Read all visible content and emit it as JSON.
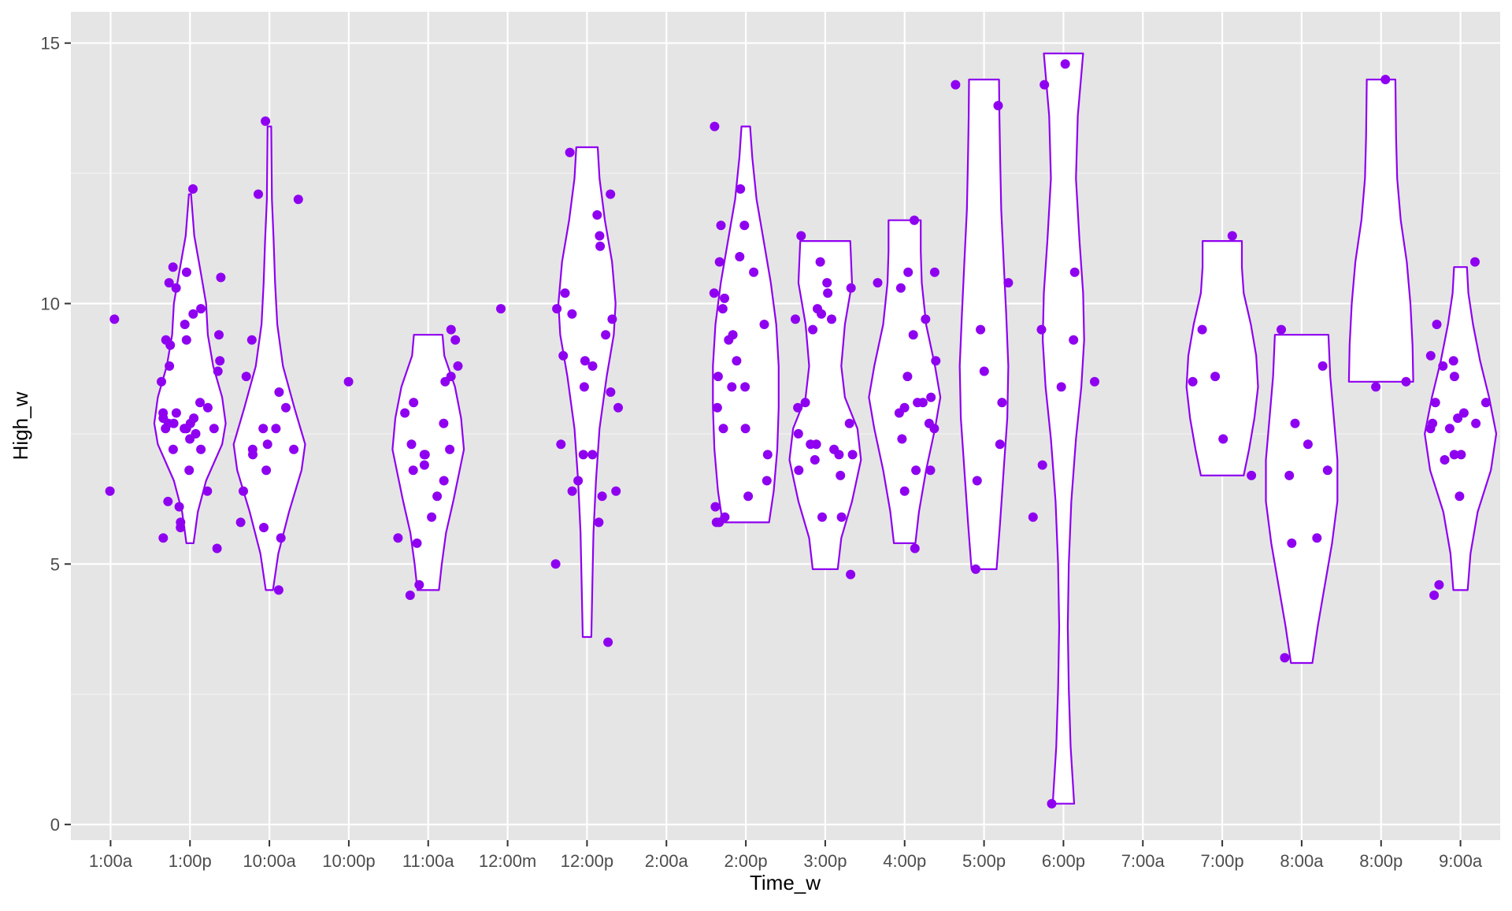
{
  "chart_data": {
    "type": "violin",
    "title": "",
    "xlabel": "Time_w",
    "ylabel": "High_w",
    "categories": [
      "1:00a",
      "1:00p",
      "10:00a",
      "10:00p",
      "11:00a",
      "12:00m",
      "12:00p",
      "2:00a",
      "2:00p",
      "3:00p",
      "4:00p",
      "5:00p",
      "6:00p",
      "7:00a",
      "7:00p",
      "8:00a",
      "8:00p",
      "9:00a"
    ],
    "y_ticks": [
      0,
      5,
      10,
      15
    ],
    "ylim": [
      -0.3,
      15.6
    ],
    "grid": true,
    "legend": "none",
    "colors": {
      "points": "#8F00F0",
      "violin_stroke": "#8F00F0",
      "violin_fill": "#FFFFFF",
      "panel_bg": "#E5E5E5",
      "grid": "#FFFFFF"
    },
    "violins": [
      {
        "category": "1:00p",
        "range": [
          5.4,
          12.1
        ],
        "profile": [
          [
            5.4,
            0.1
          ],
          [
            6.0,
            0.22
          ],
          [
            6.6,
            0.45
          ],
          [
            7.3,
            0.9
          ],
          [
            7.7,
            1.0
          ],
          [
            8.2,
            0.9
          ],
          [
            8.8,
            0.65
          ],
          [
            9.4,
            0.5
          ],
          [
            10.0,
            0.45
          ],
          [
            10.6,
            0.3
          ],
          [
            11.3,
            0.12
          ],
          [
            12.1,
            0.03
          ]
        ]
      },
      {
        "category": "10:00a",
        "range": [
          4.5,
          13.4
        ],
        "profile": [
          [
            4.5,
            0.1
          ],
          [
            5.2,
            0.25
          ],
          [
            6.0,
            0.55
          ],
          [
            6.8,
            0.9
          ],
          [
            7.3,
            1.0
          ],
          [
            8.0,
            0.7
          ],
          [
            8.8,
            0.38
          ],
          [
            9.6,
            0.22
          ],
          [
            10.4,
            0.16
          ],
          [
            11.2,
            0.12
          ],
          [
            12.0,
            0.07
          ],
          [
            13.4,
            0.05
          ]
        ]
      },
      {
        "category": "11:00a",
        "range": [
          4.5,
          9.4
        ],
        "profile": [
          [
            4.5,
            0.3
          ],
          [
            5.0,
            0.38
          ],
          [
            5.6,
            0.5
          ],
          [
            6.2,
            0.7
          ],
          [
            6.8,
            0.88
          ],
          [
            7.2,
            1.0
          ],
          [
            7.8,
            0.92
          ],
          [
            8.4,
            0.75
          ],
          [
            9.0,
            0.45
          ],
          [
            9.4,
            0.4
          ]
        ]
      },
      {
        "category": "12:00p",
        "range": [
          3.6,
          13.0
        ],
        "profile": [
          [
            3.6,
            0.12
          ],
          [
            4.6,
            0.15
          ],
          [
            5.6,
            0.18
          ],
          [
            6.6,
            0.25
          ],
          [
            7.6,
            0.35
          ],
          [
            8.6,
            0.55
          ],
          [
            9.4,
            0.75
          ],
          [
            10.0,
            0.8
          ],
          [
            10.8,
            0.7
          ],
          [
            11.6,
            0.5
          ],
          [
            12.4,
            0.35
          ],
          [
            13.0,
            0.3
          ]
        ]
      },
      {
        "category": "2:00p",
        "range": [
          5.8,
          13.4
        ],
        "profile": [
          [
            5.8,
            0.65
          ],
          [
            6.4,
            0.78
          ],
          [
            7.2,
            0.88
          ],
          [
            8.0,
            0.92
          ],
          [
            8.8,
            0.92
          ],
          [
            9.6,
            0.85
          ],
          [
            10.4,
            0.7
          ],
          [
            11.2,
            0.5
          ],
          [
            12.0,
            0.3
          ],
          [
            12.8,
            0.18
          ],
          [
            13.4,
            0.12
          ]
        ]
      },
      {
        "category": "3:00p",
        "range": [
          4.9,
          11.2
        ],
        "profile": [
          [
            4.9,
            0.35
          ],
          [
            5.5,
            0.45
          ],
          [
            6.2,
            0.75
          ],
          [
            7.0,
            1.0
          ],
          [
            7.6,
            0.9
          ],
          [
            8.2,
            0.55
          ],
          [
            8.8,
            0.45
          ],
          [
            9.6,
            0.55
          ],
          [
            10.4,
            0.75
          ],
          [
            11.2,
            0.7
          ]
        ]
      },
      {
        "category": "4:00p",
        "range": [
          5.4,
          11.6
        ],
        "profile": [
          [
            5.4,
            0.3
          ],
          [
            6.0,
            0.4
          ],
          [
            6.8,
            0.6
          ],
          [
            7.6,
            0.85
          ],
          [
            8.2,
            1.0
          ],
          [
            8.8,
            0.85
          ],
          [
            9.6,
            0.6
          ],
          [
            10.4,
            0.48
          ],
          [
            11.0,
            0.45
          ],
          [
            11.6,
            0.45
          ]
        ]
      },
      {
        "category": "5:00p",
        "range": [
          4.9,
          14.3
        ],
        "profile": [
          [
            4.9,
            0.35
          ],
          [
            5.8,
            0.45
          ],
          [
            6.8,
            0.55
          ],
          [
            7.8,
            0.65
          ],
          [
            8.8,
            0.68
          ],
          [
            9.8,
            0.62
          ],
          [
            10.8,
            0.55
          ],
          [
            11.8,
            0.48
          ],
          [
            12.8,
            0.45
          ],
          [
            13.6,
            0.43
          ],
          [
            14.3,
            0.42
          ]
        ]
      },
      {
        "category": "6:00p",
        "range": [
          0.4,
          14.8
        ],
        "profile": [
          [
            0.4,
            0.3
          ],
          [
            1.5,
            0.2
          ],
          [
            2.6,
            0.15
          ],
          [
            3.8,
            0.12
          ],
          [
            5.0,
            0.15
          ],
          [
            6.2,
            0.22
          ],
          [
            7.4,
            0.35
          ],
          [
            8.4,
            0.5
          ],
          [
            9.3,
            0.58
          ],
          [
            10.2,
            0.55
          ],
          [
            11.2,
            0.45
          ],
          [
            12.4,
            0.35
          ],
          [
            13.6,
            0.4
          ],
          [
            14.8,
            0.55
          ]
        ]
      },
      {
        "category": "7:00p",
        "range": [
          6.7,
          11.2
        ],
        "profile": [
          [
            6.7,
            0.6
          ],
          [
            7.2,
            0.75
          ],
          [
            7.8,
            0.9
          ],
          [
            8.4,
            1.0
          ],
          [
            9.0,
            0.95
          ],
          [
            9.6,
            0.8
          ],
          [
            10.2,
            0.6
          ],
          [
            10.7,
            0.55
          ],
          [
            11.2,
            0.55
          ]
        ]
      },
      {
        "category": "8:00a",
        "range": [
          3.1,
          9.4
        ],
        "profile": [
          [
            3.1,
            0.3
          ],
          [
            3.8,
            0.45
          ],
          [
            4.6,
            0.65
          ],
          [
            5.4,
            0.85
          ],
          [
            6.2,
            1.0
          ],
          [
            7.0,
            1.0
          ],
          [
            7.8,
            0.9
          ],
          [
            8.6,
            0.8
          ],
          [
            9.4,
            0.75
          ]
        ]
      },
      {
        "category": "8:00p",
        "range": [
          8.5,
          14.3
        ],
        "profile": [
          [
            8.5,
            0.9
          ],
          [
            9.2,
            0.88
          ],
          [
            10.0,
            0.82
          ],
          [
            10.8,
            0.72
          ],
          [
            11.6,
            0.55
          ],
          [
            12.4,
            0.45
          ],
          [
            13.2,
            0.42
          ],
          [
            14.3,
            0.4
          ]
        ]
      },
      {
        "category": "9:00a",
        "range": [
          4.5,
          10.7
        ],
        "profile": [
          [
            4.5,
            0.2
          ],
          [
            5.2,
            0.28
          ],
          [
            6.0,
            0.48
          ],
          [
            6.8,
            0.85
          ],
          [
            7.5,
            1.0
          ],
          [
            8.2,
            0.8
          ],
          [
            8.9,
            0.55
          ],
          [
            9.6,
            0.35
          ],
          [
            10.2,
            0.22
          ],
          [
            10.7,
            0.18
          ]
        ]
      }
    ],
    "points": [
      {
        "category": "1:00a",
        "values": [
          6.4,
          9.7
        ]
      },
      {
        "category": "1:00p",
        "values": [
          7.6,
          7.7,
          7.6,
          7.7,
          7.8,
          7.6,
          7.5,
          7.6,
          7.9,
          8.0,
          8.1,
          7.9,
          7.4,
          7.2,
          7.2,
          7.7,
          7.8,
          6.8,
          8.8,
          8.5,
          8.7,
          8.9,
          9.3,
          9.3,
          9.4,
          9.2,
          9.6,
          9.8,
          9.9,
          10.3,
          10.4,
          10.5,
          10.6,
          10.7,
          12.2,
          6.1,
          6.2,
          6.4,
          5.8,
          5.7,
          5.5,
          5.3
        ]
      },
      {
        "category": "10:00a",
        "values": [
          7.1,
          7.2,
          7.3,
          7.2,
          7.6,
          7.6,
          8.0,
          8.3,
          8.6,
          9.3,
          6.8,
          6.4,
          5.8,
          5.7,
          5.5,
          4.5,
          12.0,
          12.1,
          13.5
        ]
      },
      {
        "category": "10:00p",
        "values": [
          8.5
        ]
      },
      {
        "category": "11:00a",
        "values": [
          7.1,
          7.2,
          7.1,
          6.9,
          6.8,
          7.3,
          7.7,
          7.9,
          8.1,
          8.5,
          8.6,
          8.8,
          9.3,
          9.5,
          6.6,
          6.3,
          5.9,
          5.5,
          5.4,
          4.6,
          4.4
        ]
      },
      {
        "category": "12:00m",
        "values": [
          9.9
        ]
      },
      {
        "category": "12:00p",
        "values": [
          5.8,
          6.3,
          6.4,
          6.4,
          5.0,
          6.6,
          7.1,
          7.1,
          7.3,
          8.0,
          8.4,
          8.3,
          8.8,
          8.9,
          9.0,
          9.4,
          9.7,
          9.8,
          9.9,
          10.2,
          11.1,
          11.3,
          11.7,
          12.1,
          12.9,
          3.5
        ]
      },
      {
        "category": "2:00p",
        "values": [
          5.9,
          5.8,
          5.8,
          6.1,
          6.3,
          6.6,
          7.1,
          7.6,
          7.6,
          8.0,
          8.4,
          8.4,
          8.6,
          8.9,
          9.3,
          9.4,
          9.6,
          9.9,
          10.1,
          10.2,
          10.6,
          10.8,
          10.9,
          11.5,
          11.5,
          12.2,
          13.4
        ]
      },
      {
        "category": "3:00p",
        "values": [
          5.9,
          5.9,
          6.7,
          7.0,
          7.1,
          7.1,
          7.2,
          7.3,
          7.3,
          7.5,
          7.7,
          6.8,
          8.0,
          8.1,
          9.5,
          9.7,
          9.7,
          9.8,
          9.9,
          10.2,
          10.3,
          10.4,
          10.8,
          11.3,
          4.8
        ]
      },
      {
        "category": "4:00p",
        "values": [
          5.3,
          6.4,
          6.8,
          6.8,
          7.4,
          7.6,
          7.7,
          7.9,
          8.0,
          8.1,
          8.1,
          8.2,
          8.6,
          8.9,
          9.4,
          9.7,
          10.3,
          10.4,
          10.6,
          10.6,
          11.6
        ]
      },
      {
        "category": "5:00p",
        "values": [
          6.6,
          7.3,
          8.1,
          8.7,
          9.5,
          10.4,
          13.8,
          14.2,
          4.9
        ]
      },
      {
        "category": "6:00p",
        "values": [
          8.4,
          8.5,
          9.3,
          9.5,
          10.6,
          6.9,
          14.2,
          14.6,
          0.4,
          5.9
        ]
      },
      {
        "category": "7:00p",
        "values": [
          6.7,
          7.4,
          8.5,
          8.6,
          9.5,
          11.3
        ]
      },
      {
        "category": "8:00a",
        "values": [
          3.2,
          5.5,
          6.7,
          6.8,
          7.3,
          7.7,
          8.8,
          9.5,
          5.4
        ]
      },
      {
        "category": "8:00p",
        "values": [
          8.4,
          8.5,
          14.3
        ]
      },
      {
        "category": "9:00a",
        "values": [
          4.4,
          4.6,
          6.3,
          7.0,
          7.1,
          7.1,
          7.6,
          7.6,
          7.7,
          7.7,
          7.8,
          7.9,
          8.1,
          8.1,
          8.6,
          8.8,
          8.9,
          9.0,
          9.6,
          10.8
        ]
      }
    ]
  }
}
